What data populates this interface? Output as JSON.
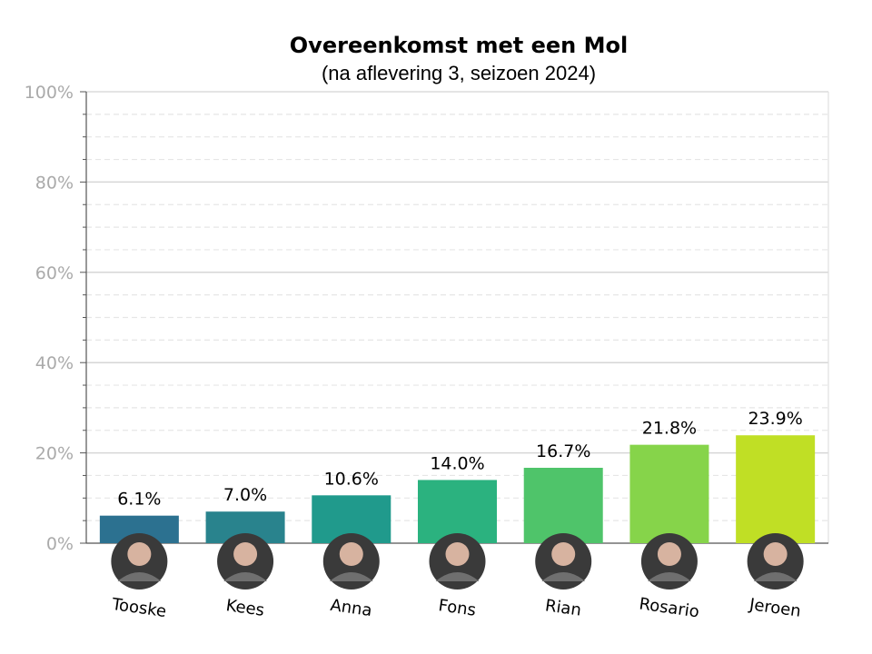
{
  "chart_data": {
    "type": "bar",
    "title": "Overeenkomst met een Mol",
    "subtitle": "(na aflevering 3, seizoen 2024)",
    "categories": [
      "Tooske",
      "Kees",
      "Anna",
      "Fons",
      "Rian",
      "Rosario",
      "Jeroen"
    ],
    "values": [
      6.1,
      7.0,
      10.6,
      14.0,
      16.7,
      21.8,
      23.9
    ],
    "value_labels": [
      "6.1%",
      "7.0%",
      "10.6%",
      "14.0%",
      "16.7%",
      "21.8%",
      "23.9%"
    ],
    "colors": [
      "#2c7190",
      "#29838d",
      "#209a8c",
      "#2bb27f",
      "#4fc46a",
      "#86d44a",
      "#c0df25"
    ],
    "ylim": [
      0,
      100
    ],
    "yticks": [
      0,
      20,
      40,
      60,
      80,
      100
    ],
    "ytick_labels": [
      "0%",
      "20%",
      "40%",
      "60%",
      "80%",
      "100%"
    ],
    "grid": true,
    "xlabel": "",
    "ylabel": ""
  }
}
